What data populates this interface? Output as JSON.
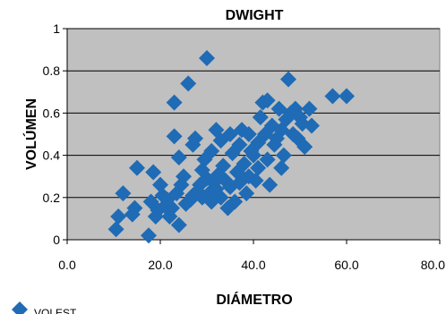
{
  "chart_data": {
    "type": "scatter",
    "title": "DWIGHT",
    "xlabel": "DIÁMETRO",
    "ylabel": "VOLÚMEN",
    "xlim": [
      0,
      80
    ],
    "ylim": [
      0,
      1
    ],
    "xticks": [
      "0.0",
      "20.0",
      "40.0",
      "60.0",
      "80.0"
    ],
    "yticks": [
      "0",
      "0.2",
      "0.4",
      "0.6",
      "0.8",
      "1"
    ],
    "grid": "horizontal",
    "legend_position": "bottom-left",
    "plot_background": "#c0c0c0",
    "series": [
      {
        "name": "VOLEST",
        "color": "#1f6bb5",
        "marker": "diamond-icon",
        "points": [
          [
            10.5,
            0.05
          ],
          [
            11,
            0.11
          ],
          [
            12,
            0.22
          ],
          [
            14,
            0.12
          ],
          [
            14.5,
            0.15
          ],
          [
            15,
            0.34
          ],
          [
            17.5,
            0.02
          ],
          [
            18,
            0.18
          ],
          [
            18.5,
            0.32
          ],
          [
            19,
            0.11
          ],
          [
            19.5,
            0.14
          ],
          [
            20,
            0.26
          ],
          [
            20.5,
            0.21
          ],
          [
            21,
            0.16
          ],
          [
            21.5,
            0.19
          ],
          [
            22,
            0.11
          ],
          [
            22.5,
            0.15
          ],
          [
            23,
            0.49
          ],
          [
            23,
            0.65
          ],
          [
            23.5,
            0.22
          ],
          [
            24,
            0.07
          ],
          [
            24,
            0.39
          ],
          [
            24.5,
            0.26
          ],
          [
            25,
            0.3
          ],
          [
            25.5,
            0.17
          ],
          [
            26,
            0.74
          ],
          [
            26.5,
            0.19
          ],
          [
            27,
            0.21
          ],
          [
            27,
            0.45
          ],
          [
            27.5,
            0.48
          ],
          [
            28,
            0.23
          ],
          [
            28.5,
            0.26
          ],
          [
            29,
            0.2
          ],
          [
            29,
            0.33
          ],
          [
            29.5,
            0.38
          ],
          [
            30,
            0.86
          ],
          [
            30,
            0.29
          ],
          [
            30.5,
            0.22
          ],
          [
            31,
            0.18
          ],
          [
            31,
            0.42
          ],
          [
            31.5,
            0.27
          ],
          [
            32,
            0.52
          ],
          [
            32,
            0.24
          ],
          [
            32.5,
            0.31
          ],
          [
            33,
            0.2
          ],
          [
            33,
            0.47
          ],
          [
            33.5,
            0.35
          ],
          [
            34,
            0.28
          ],
          [
            34.5,
            0.15
          ],
          [
            35,
            0.5
          ],
          [
            35,
            0.25
          ],
          [
            35.5,
            0.41
          ],
          [
            36,
            0.18
          ],
          [
            36.5,
            0.32
          ],
          [
            37,
            0.45
          ],
          [
            37,
            0.27
          ],
          [
            37.5,
            0.52
          ],
          [
            38,
            0.36
          ],
          [
            38.5,
            0.22
          ],
          [
            39,
            0.5
          ],
          [
            39,
            0.3
          ],
          [
            39.5,
            0.42
          ],
          [
            40,
            0.4
          ],
          [
            40.5,
            0.28
          ],
          [
            41,
            0.46
          ],
          [
            41,
            0.34
          ],
          [
            41.5,
            0.58
          ],
          [
            42,
            0.65
          ],
          [
            42.5,
            0.5
          ],
          [
            43,
            0.66
          ],
          [
            43,
            0.38
          ],
          [
            43.5,
            0.26
          ],
          [
            44,
            0.54
          ],
          [
            44.5,
            0.45
          ],
          [
            45,
            0.48
          ],
          [
            45.5,
            0.62
          ],
          [
            46,
            0.52
          ],
          [
            46,
            0.34
          ],
          [
            46.5,
            0.4
          ],
          [
            47,
            0.57
          ],
          [
            47.5,
            0.76
          ],
          [
            48,
            0.6
          ],
          [
            48.5,
            0.5
          ],
          [
            49,
            0.62
          ],
          [
            49.5,
            0.48
          ],
          [
            50,
            0.58
          ],
          [
            50.5,
            0.55
          ],
          [
            51,
            0.44
          ],
          [
            52,
            0.62
          ],
          [
            52.5,
            0.54
          ],
          [
            57,
            0.68
          ],
          [
            60,
            0.68
          ]
        ]
      }
    ]
  }
}
